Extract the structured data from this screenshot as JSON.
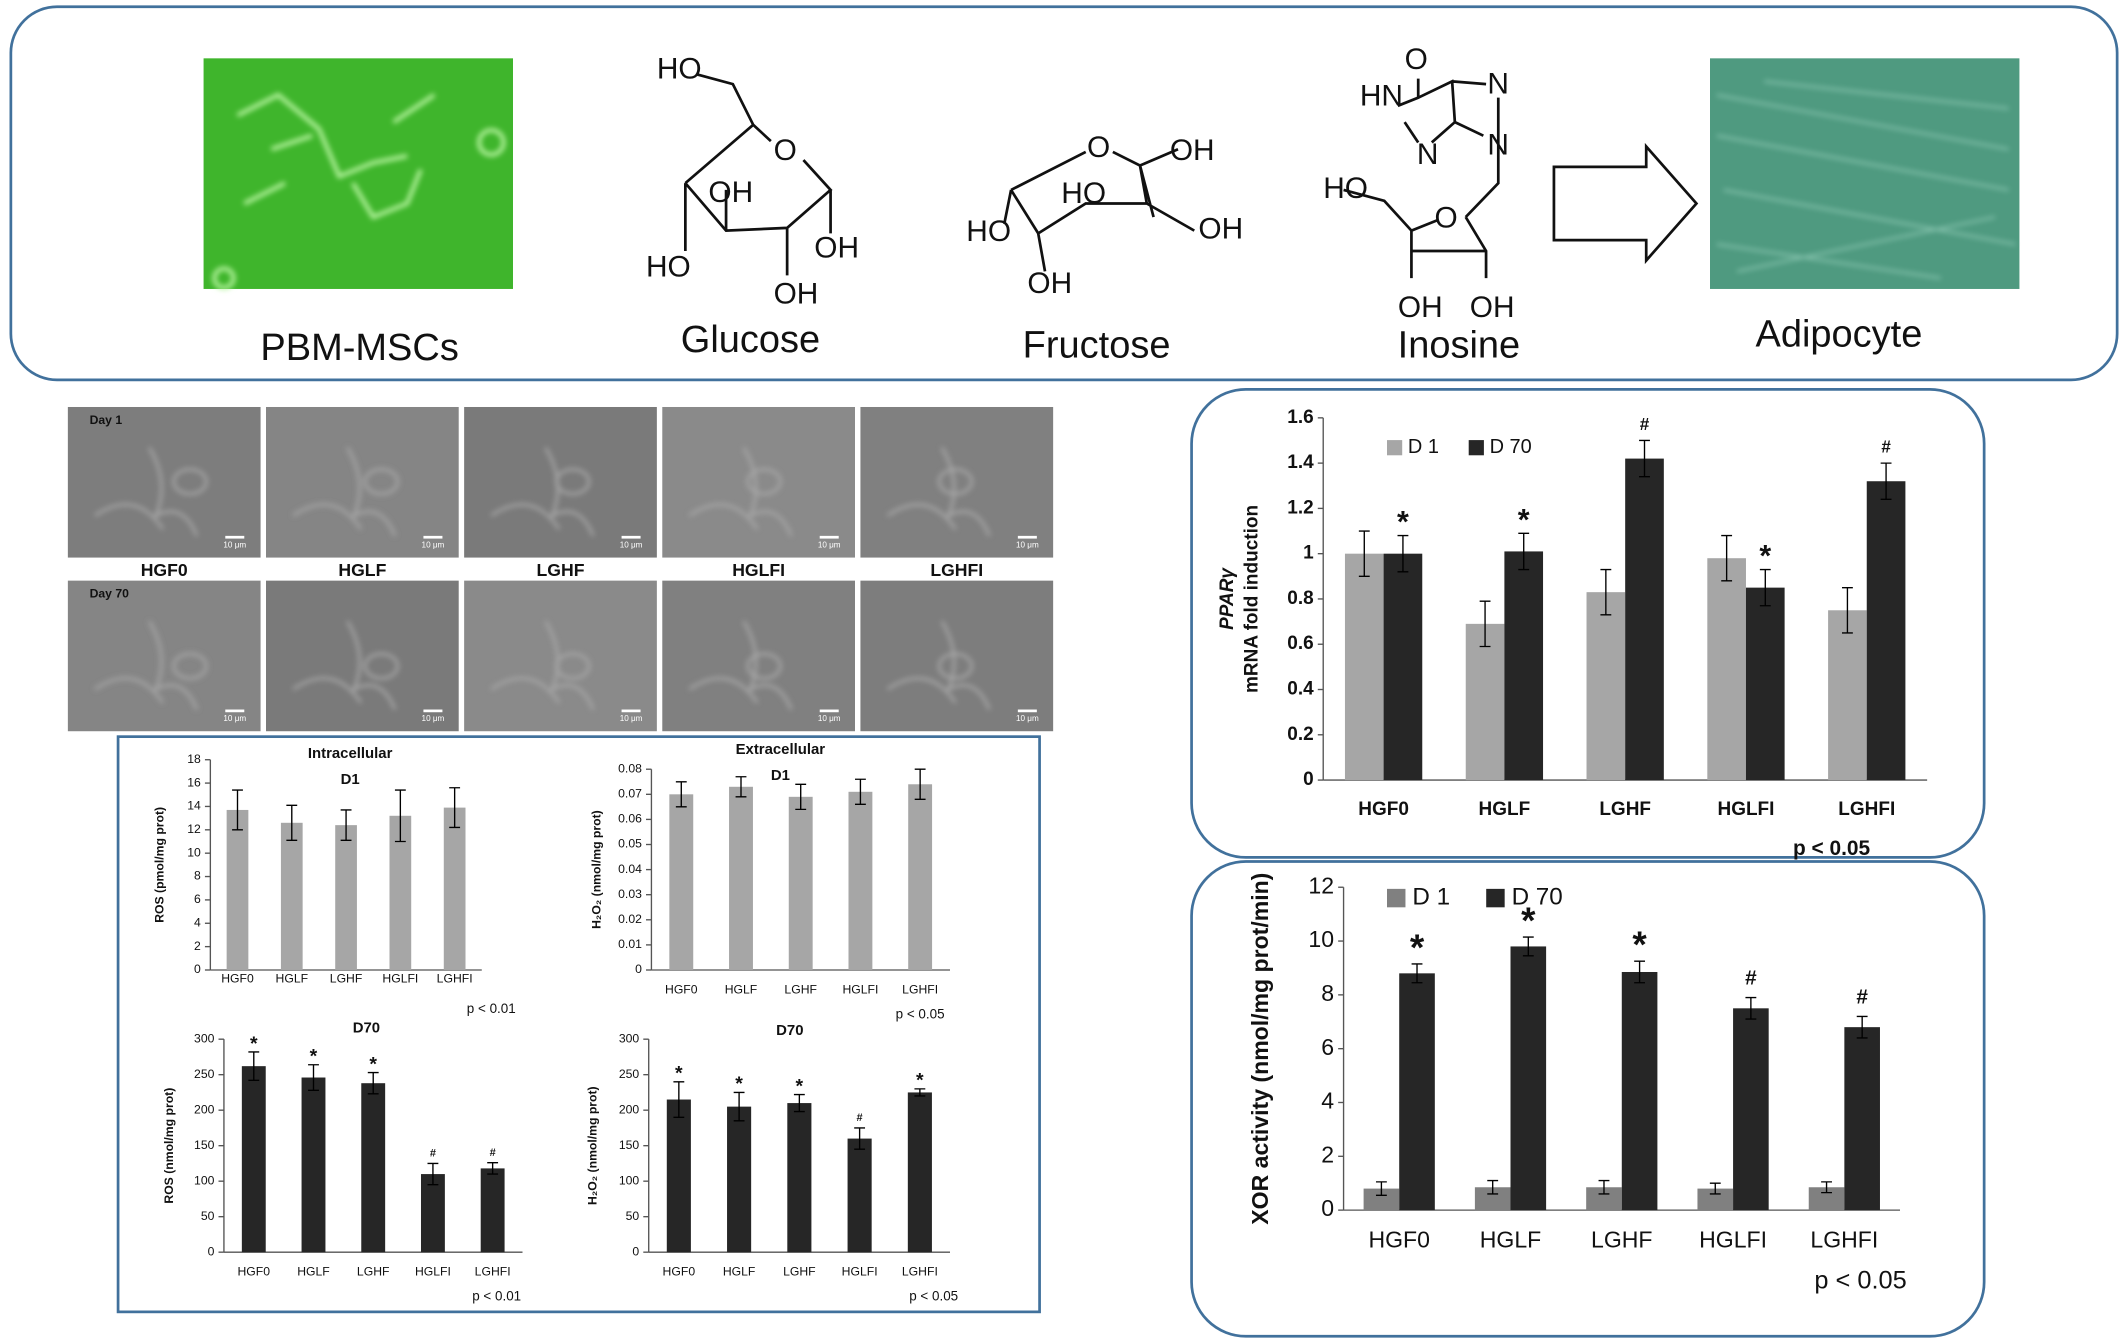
{
  "header": {
    "labels": [
      "PBM-MSCs",
      "Glucose",
      "Fructose",
      "Inosine",
      "Adipocyte"
    ]
  },
  "structures": {
    "glucose": [
      "HO",
      "O",
      "OH",
      "OH",
      "HO",
      "OH"
    ],
    "fructose": [
      "O",
      "OH",
      "HO",
      "OH",
      "HO",
      "OH"
    ],
    "inosine": [
      "O",
      "HN",
      "N",
      "N",
      "N",
      "HO",
      "O",
      "OH",
      "OH"
    ]
  },
  "micrographs": {
    "rows": [
      "Day 1",
      "Day 70"
    ],
    "columns": [
      "HGF0",
      "HGLF",
      "LGHF",
      "HGLFI",
      "LGHFI"
    ],
    "scale_bar": "10 μm"
  },
  "chart_data": [
    {
      "type": "bar",
      "title": "Intracellular",
      "subtitle": "D1",
      "ylabel": "ROS (pmol/mg prot)",
      "categories": [
        "HGF0",
        "HGLF",
        "LGHF",
        "HGLFI",
        "LGHFI"
      ],
      "series": [
        {
          "color": "#a6a6a6",
          "values": [
            13.7,
            12.6,
            12.4,
            13.2,
            13.9
          ],
          "errors": [
            1.7,
            1.5,
            1.3,
            2.2,
            1.7
          ]
        }
      ],
      "ylim": [
        0,
        18
      ],
      "yticks": [
        0,
        2,
        4,
        6,
        8,
        10,
        12,
        14,
        16,
        18
      ],
      "note": "p < 0.01"
    },
    {
      "type": "bar",
      "title": "Extracellular",
      "subtitle": "D1",
      "ylabel": "H₂O₂ (nmol/mg prot)",
      "categories": [
        "HGF0",
        "HGLF",
        "LGHF",
        "HGLFI",
        "LGHFI"
      ],
      "series": [
        {
          "color": "#a6a6a6",
          "values": [
            0.07,
            0.073,
            0.069,
            0.071,
            0.074
          ],
          "errors": [
            0.005,
            0.004,
            0.005,
            0.005,
            0.006
          ]
        }
      ],
      "ylim": [
        0,
        0.08
      ],
      "yticks": [
        0,
        0.01,
        0.02,
        0.03,
        0.04,
        0.05,
        0.06,
        0.07,
        0.08
      ],
      "note": "p < 0.05"
    },
    {
      "type": "bar",
      "title": "D70",
      "ylabel": "ROS (nmol/mg prot)",
      "categories": [
        "HGF0",
        "HGLF",
        "LGHF",
        "HGLFI",
        "LGHFI"
      ],
      "series": [
        {
          "color": "#262626",
          "values": [
            262,
            246,
            238,
            110,
            118
          ],
          "errors": [
            20,
            18,
            15,
            15,
            8
          ],
          "markers": [
            "*",
            "*",
            "*",
            "#",
            "#"
          ]
        }
      ],
      "ylim": [
        0,
        300
      ],
      "yticks": [
        0,
        50,
        100,
        150,
        200,
        250,
        300
      ],
      "note": "p < 0.01"
    },
    {
      "type": "bar",
      "title": "D70",
      "ylabel": "H₂O₂ (nmol/mg prot)",
      "categories": [
        "HGF0",
        "HGLF",
        "LGHF",
        "HGLFI",
        "LGHFI"
      ],
      "series": [
        {
          "color": "#262626",
          "values": [
            215,
            205,
            210,
            160,
            225
          ],
          "errors": [
            25,
            20,
            12,
            15,
            5
          ],
          "markers": [
            "*",
            "*",
            "*",
            "#",
            "*"
          ]
        }
      ],
      "ylim": [
        0,
        300
      ],
      "yticks": [
        0,
        50,
        100,
        150,
        200,
        250,
        300
      ],
      "note": "p < 0.05"
    },
    {
      "type": "bar",
      "ylabel": [
        "PPARγ",
        "mRNA fold induction"
      ],
      "categories": [
        "HGF0",
        "HGLF",
        "LGHF",
        "HGLFI",
        "LGHFI"
      ],
      "series": [
        {
          "name": "D 1",
          "color": "#a6a6a6",
          "values": [
            1.0,
            0.69,
            0.83,
            0.98,
            0.75
          ],
          "errors": [
            0.1,
            0.1,
            0.1,
            0.1,
            0.1
          ]
        },
        {
          "name": "D 70",
          "color": "#262626",
          "values": [
            1.0,
            1.01,
            1.42,
            0.85,
            1.32
          ],
          "errors": [
            0.08,
            0.08,
            0.08,
            0.08,
            0.08
          ],
          "markers": [
            "*",
            "*",
            "#",
            "*",
            "#"
          ]
        }
      ],
      "ylim": [
        0,
        1.6
      ],
      "yticks": [
        0,
        0.2,
        0.4,
        0.6,
        0.8,
        1,
        1.2,
        1.4,
        1.6
      ],
      "legend": "top-left",
      "note": "p < 0.05"
    },
    {
      "type": "bar",
      "ylabel": "XOR activity (nmol/mg prot/min)",
      "categories": [
        "HGF0",
        "HGLF",
        "LGHF",
        "HGLFI",
        "LGHFI"
      ],
      "series": [
        {
          "name": "D 1",
          "color": "#808080",
          "values": [
            0.8,
            0.85,
            0.85,
            0.8,
            0.85
          ],
          "errors": [
            0.25,
            0.25,
            0.25,
            0.2,
            0.2
          ]
        },
        {
          "name": "D 70",
          "color": "#262626",
          "values": [
            8.8,
            9.8,
            8.85,
            7.5,
            6.8
          ],
          "errors": [
            0.35,
            0.35,
            0.4,
            0.4,
            0.4
          ],
          "markers": [
            "*",
            "*",
            "*",
            "#",
            "#"
          ]
        }
      ],
      "ylim": [
        0,
        12
      ],
      "yticks": [
        0,
        2,
        4,
        6,
        8,
        10,
        12
      ],
      "legend": "top-left",
      "note": "p < 0.05"
    }
  ]
}
